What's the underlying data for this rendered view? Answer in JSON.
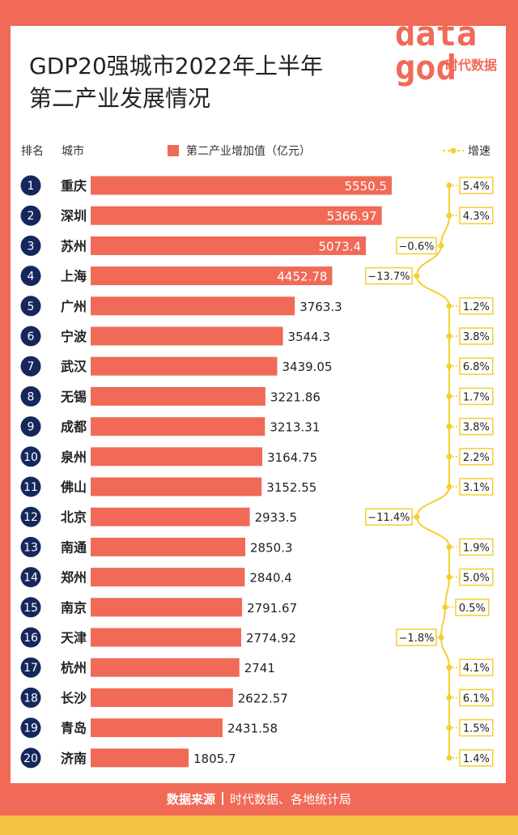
{
  "title_line1": "GDP20强城市2022年上半年",
  "title_line2": "第二产业发展情况",
  "header": {
    "rank": "排名",
    "city": "城市",
    "value_legend": "第二产业增加值（亿元）",
    "growth_legend": "增速"
  },
  "logo": {
    "text": "data",
    "subtext": "时代数据"
  },
  "footer": {
    "label": "数据来源",
    "source": "时代数据、各地统计局"
  },
  "colors": {
    "accent": "#f06a57",
    "navy": "#16275c",
    "growth": "#f3cf30"
  },
  "chart_data": {
    "type": "bar",
    "title": "GDP20强城市2022年上半年第二产业发展情况",
    "categories": [
      "重庆",
      "深圳",
      "苏州",
      "上海",
      "广州",
      "宁波",
      "武汉",
      "无锡",
      "成都",
      "泉州",
      "佛山",
      "北京",
      "南通",
      "郑州",
      "南京",
      "天津",
      "杭州",
      "长沙",
      "青岛",
      "济南"
    ],
    "ranks": [
      "1",
      "2",
      "3",
      "4",
      "5",
      "6",
      "7",
      "8",
      "9",
      "10",
      "11",
      "12",
      "13",
      "14",
      "15",
      "16",
      "17",
      "18",
      "19",
      "20"
    ],
    "value_labels": [
      "5550.5",
      "5366.97",
      "5073.4",
      "4452.78",
      "3763.3",
      "3544.3",
      "3439.05",
      "3221.86",
      "3213.31",
      "3164.75",
      "3152.55",
      "2933.5",
      "2850.3",
      "2840.4",
      "2791.67",
      "2774.92",
      "2741",
      "2622.57",
      "2431.58",
      "1805.7"
    ],
    "series": [
      {
        "name": "第二产业增加值（亿元）",
        "values": [
          5550.5,
          5366.97,
          5073.4,
          4452.78,
          3763.3,
          3544.3,
          3439.05,
          3221.86,
          3213.31,
          3164.75,
          3152.55,
          2933.5,
          2850.3,
          2840.4,
          2791.67,
          2774.92,
          2741,
          2622.57,
          2431.58,
          1805.7
        ]
      },
      {
        "name": "增速",
        "values": [
          5.4,
          4.3,
          -0.6,
          -13.7,
          1.2,
          3.8,
          6.8,
          1.7,
          3.8,
          2.2,
          3.1,
          -11.4,
          1.9,
          5.0,
          0.5,
          -1.8,
          4.1,
          6.1,
          1.5,
          1.4
        ]
      }
    ],
    "growth_labels": [
      "5.4%",
      "4.3%",
      "−0.6%",
      "−13.7%",
      "1.2%",
      "3.8%",
      "6.8%",
      "1.7%",
      "3.8%",
      "2.2%",
      "3.1%",
      "−11.4%",
      "1.9%",
      "5.0%",
      "0.5%",
      "−1.8%",
      "4.1%",
      "6.1%",
      "1.5%",
      "1.4%"
    ]
  }
}
